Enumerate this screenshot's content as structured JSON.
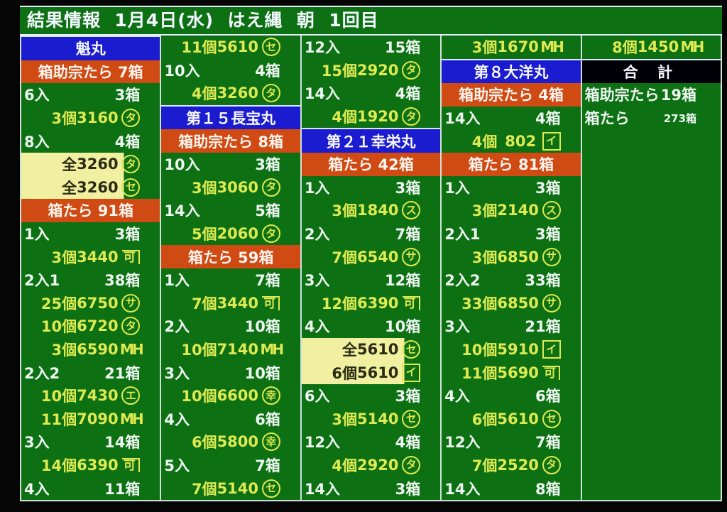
{
  "header": {
    "title": "結果情報  1月4日(水)  はえ縄  朝  1回目"
  },
  "table": {
    "columns": [
      {
        "rows": [
          {
            "type": "vessel",
            "label": "魁丸"
          },
          {
            "type": "species",
            "label": "箱助宗たら 7箱"
          },
          {
            "type": "lot",
            "label": "6入",
            "boxes": "3箱"
          },
          {
            "type": "bid",
            "qty": "3個",
            "price": "3160",
            "mark": {
              "shape": "circle",
              "char": "タ"
            }
          },
          {
            "type": "lot",
            "label": "8入",
            "boxes": "4箱"
          },
          {
            "type": "bid",
            "qty": "全",
            "price": "3260",
            "highlight": true,
            "mark": {
              "shape": "circle",
              "char": "タ"
            }
          },
          {
            "type": "bid",
            "qty": "全",
            "price": "3260",
            "highlight": true,
            "mark": {
              "shape": "circle",
              "char": "セ"
            }
          },
          {
            "type": "species",
            "label": "箱たら 91箱"
          },
          {
            "type": "lot",
            "label": "1入",
            "boxes": "3箱"
          },
          {
            "type": "bid",
            "qty": "3個",
            "price": "3440",
            "mark": {
              "shape": "kane",
              "char": "可"
            }
          },
          {
            "type": "lot",
            "label": "2入1",
            "boxes": "38箱"
          },
          {
            "type": "bid",
            "qty": "25個",
            "price": "6750",
            "mark": {
              "shape": "circle",
              "char": "サ"
            }
          },
          {
            "type": "bid",
            "qty": "10個",
            "price": "6720",
            "mark": {
              "shape": "circle",
              "char": "タ"
            }
          },
          {
            "type": "bid",
            "qty": "3個",
            "price": "6590",
            "mark": {
              "shape": "plain",
              "char": "MH"
            }
          },
          {
            "type": "lot",
            "label": "2入2",
            "boxes": "21箱"
          },
          {
            "type": "bid",
            "qty": "10個",
            "price": "7430",
            "mark": {
              "shape": "circle",
              "char": "エ"
            }
          },
          {
            "type": "bid",
            "qty": "11個",
            "price": "7090",
            "mark": {
              "shape": "plain",
              "char": "MH"
            }
          },
          {
            "type": "lot",
            "label": "3入",
            "boxes": "14箱"
          },
          {
            "type": "bid",
            "qty": "14個",
            "price": "6390",
            "mark": {
              "shape": "kane",
              "char": "可"
            }
          },
          {
            "type": "lot",
            "label": "4入",
            "boxes": "11箱"
          }
        ]
      },
      {
        "rows": [
          {
            "type": "bid",
            "qty": "11個",
            "price": "5610",
            "mark": {
              "shape": "circle",
              "char": "セ"
            }
          },
          {
            "type": "lot",
            "label": "10入",
            "boxes": "4箱"
          },
          {
            "type": "bid",
            "qty": "4個",
            "price": "3260",
            "mark": {
              "shape": "circle",
              "char": "タ"
            }
          },
          {
            "type": "vessel",
            "label": "第１５長宝丸"
          },
          {
            "type": "species",
            "label": "箱助宗たら 8箱"
          },
          {
            "type": "lot",
            "label": "10入",
            "boxes": "3箱"
          },
          {
            "type": "bid",
            "qty": "3個",
            "price": "3060",
            "mark": {
              "shape": "circle",
              "char": "タ"
            }
          },
          {
            "type": "lot",
            "label": "14入",
            "boxes": "5箱"
          },
          {
            "type": "bid",
            "qty": "5個",
            "price": "2060",
            "mark": {
              "shape": "circle",
              "char": "タ"
            }
          },
          {
            "type": "species",
            "label": "箱たら 59箱"
          },
          {
            "type": "lot",
            "label": "1入",
            "boxes": "7箱"
          },
          {
            "type": "bid",
            "qty": "7個",
            "price": "3440",
            "mark": {
              "shape": "kane",
              "char": "可"
            }
          },
          {
            "type": "lot",
            "label": "2入",
            "boxes": "10箱"
          },
          {
            "type": "bid",
            "qty": "10個",
            "price": "7140",
            "mark": {
              "shape": "plain",
              "char": "MH"
            }
          },
          {
            "type": "lot",
            "label": "3入",
            "boxes": "10箱"
          },
          {
            "type": "bid",
            "qty": "10個",
            "price": "6600",
            "mark": {
              "shape": "circle",
              "char": "幸"
            }
          },
          {
            "type": "lot",
            "label": "4入",
            "boxes": "6箱"
          },
          {
            "type": "bid",
            "qty": "6個",
            "price": "5800",
            "mark": {
              "shape": "circle",
              "char": "幸"
            }
          },
          {
            "type": "lot",
            "label": "5入",
            "boxes": "7箱"
          },
          {
            "type": "bid",
            "qty": "7個",
            "price": "5140",
            "mark": {
              "shape": "circle",
              "char": "セ"
            }
          }
        ]
      },
      {
        "rows": [
          {
            "type": "lot",
            "label": "12入",
            "boxes": "15箱"
          },
          {
            "type": "bid",
            "qty": "15個",
            "price": "2920",
            "mark": {
              "shape": "circle",
              "char": "タ"
            }
          },
          {
            "type": "lot",
            "label": "14入",
            "boxes": "4箱"
          },
          {
            "type": "bid",
            "qty": "4個",
            "price": "1920",
            "mark": {
              "shape": "circle",
              "char": "タ"
            }
          },
          {
            "type": "vessel",
            "label": "第２１幸栄丸"
          },
          {
            "type": "species",
            "label": "箱たら 42箱"
          },
          {
            "type": "lot",
            "label": "1入",
            "boxes": "3箱"
          },
          {
            "type": "bid",
            "qty": "3個",
            "price": "1840",
            "mark": {
              "shape": "circle",
              "char": "ス"
            }
          },
          {
            "type": "lot",
            "label": "2入",
            "boxes": "7箱"
          },
          {
            "type": "bid",
            "qty": "7個",
            "price": "6540",
            "mark": {
              "shape": "circle",
              "char": "サ"
            }
          },
          {
            "type": "lot",
            "label": "3入",
            "boxes": "12箱"
          },
          {
            "type": "bid",
            "qty": "12個",
            "price": "6390",
            "mark": {
              "shape": "kane",
              "char": "可"
            }
          },
          {
            "type": "lot",
            "label": "4入",
            "boxes": "10箱"
          },
          {
            "type": "bid",
            "qty": "全",
            "price": "5610",
            "highlight": true,
            "mark": {
              "shape": "circle",
              "char": "セ"
            }
          },
          {
            "type": "bid",
            "qty": "6個",
            "price": "5610",
            "highlight": true,
            "mark": {
              "shape": "box",
              "char": "イ"
            }
          },
          {
            "type": "lot",
            "label": "6入",
            "boxes": "3箱"
          },
          {
            "type": "bid",
            "qty": "3個",
            "price": "5140",
            "mark": {
              "shape": "circle",
              "char": "セ"
            }
          },
          {
            "type": "lot",
            "label": "12入",
            "boxes": "4箱"
          },
          {
            "type": "bid",
            "qty": "4個",
            "price": "2920",
            "mark": {
              "shape": "circle",
              "char": "タ"
            }
          },
          {
            "type": "lot",
            "label": "14入",
            "boxes": "3箱"
          }
        ]
      },
      {
        "rows": [
          {
            "type": "bid",
            "qty": "3個",
            "price": "1670",
            "mark": {
              "shape": "plain",
              "char": "MH"
            }
          },
          {
            "type": "vessel",
            "label": "第８大洋丸"
          },
          {
            "type": "species",
            "label": "箱助宗たら 4箱"
          },
          {
            "type": "lot",
            "label": "14入",
            "boxes": "4箱"
          },
          {
            "type": "bid",
            "qty": "4個",
            "price": "802",
            "mark": {
              "shape": "box",
              "char": "イ"
            }
          },
          {
            "type": "species",
            "label": "箱たら 81箱"
          },
          {
            "type": "lot",
            "label": "1入",
            "boxes": "3箱"
          },
          {
            "type": "bid",
            "qty": "3個",
            "price": "2140",
            "mark": {
              "shape": "circle",
              "char": "ス"
            }
          },
          {
            "type": "lot",
            "label": "2入1",
            "boxes": "3箱"
          },
          {
            "type": "bid",
            "qty": "3個",
            "price": "6850",
            "mark": {
              "shape": "circle",
              "char": "サ"
            }
          },
          {
            "type": "lot",
            "label": "2入2",
            "boxes": "33箱"
          },
          {
            "type": "bid",
            "qty": "33個",
            "price": "6850",
            "mark": {
              "shape": "circle",
              "char": "サ"
            }
          },
          {
            "type": "lot",
            "label": "3入",
            "boxes": "21箱"
          },
          {
            "type": "bid",
            "qty": "10個",
            "price": "5910",
            "mark": {
              "shape": "box",
              "char": "イ"
            }
          },
          {
            "type": "bid",
            "qty": "11個",
            "price": "5690",
            "mark": {
              "shape": "kane",
              "char": "可"
            }
          },
          {
            "type": "lot",
            "label": "4入",
            "boxes": "6箱"
          },
          {
            "type": "bid",
            "qty": "6個",
            "price": "5610",
            "mark": {
              "shape": "circle",
              "char": "セ"
            }
          },
          {
            "type": "lot",
            "label": "12入",
            "boxes": "7箱"
          },
          {
            "type": "bid",
            "qty": "7個",
            "price": "2520",
            "mark": {
              "shape": "circle",
              "char": "タ"
            }
          },
          {
            "type": "lot",
            "label": "14入",
            "boxes": "8箱"
          }
        ]
      },
      {
        "rows": [
          {
            "type": "bid",
            "qty": "8個",
            "price": "1450",
            "mark": {
              "shape": "plain",
              "char": "MH"
            }
          },
          {
            "type": "totalhead",
            "label": "合 計"
          },
          {
            "type": "totline",
            "label": "箱助宗たら",
            "value": "19箱"
          },
          {
            "type": "totline",
            "label": "箱たら",
            "value": "273箱",
            "small": true
          },
          {
            "type": "empty"
          },
          {
            "type": "empty"
          },
          {
            "type": "empty"
          },
          {
            "type": "empty"
          },
          {
            "type": "empty"
          },
          {
            "type": "empty"
          },
          {
            "type": "empty"
          },
          {
            "type": "empty"
          },
          {
            "type": "empty"
          },
          {
            "type": "empty"
          },
          {
            "type": "empty"
          },
          {
            "type": "empty"
          },
          {
            "type": "empty"
          },
          {
            "type": "empty"
          },
          {
            "type": "empty"
          },
          {
            "type": "empty"
          }
        ]
      }
    ]
  }
}
